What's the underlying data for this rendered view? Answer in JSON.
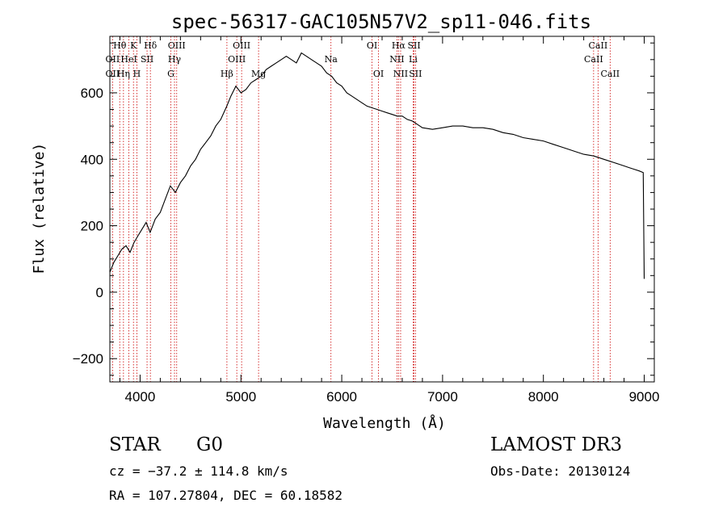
{
  "chart_data": {
    "type": "line",
    "title": "spec-56317-GAC105N57V2_sp11-046.fits",
    "xlabel": "Wavelength (Å)",
    "ylabel": "Flux (relative)",
    "xlim": [
      3700,
      9100
    ],
    "ylim": [
      -270,
      770
    ],
    "xticks": [
      4000,
      5000,
      6000,
      7000,
      8000,
      9000
    ],
    "yticks": [
      -200,
      0,
      200,
      400,
      600
    ],
    "series": [
      {
        "name": "flux",
        "x": [
          3700,
          3740,
          3780,
          3820,
          3860,
          3900,
          3940,
          3980,
          4020,
          4060,
          4100,
          4150,
          4200,
          4250,
          4300,
          4350,
          4400,
          4450,
          4500,
          4550,
          4600,
          4650,
          4700,
          4750,
          4800,
          4860,
          4900,
          4950,
          5000,
          5050,
          5100,
          5150,
          5200,
          5250,
          5300,
          5350,
          5400,
          5450,
          5500,
          5550,
          5600,
          5650,
          5700,
          5750,
          5800,
          5850,
          5900,
          5950,
          6000,
          6050,
          6100,
          6150,
          6200,
          6250,
          6300,
          6350,
          6400,
          6450,
          6500,
          6550,
          6600,
          6650,
          6700,
          6750,
          6800,
          6900,
          7000,
          7100,
          7200,
          7300,
          7400,
          7500,
          7600,
          7700,
          7800,
          7900,
          8000,
          8100,
          8200,
          8300,
          8400,
          8500,
          8600,
          8650,
          8700,
          8750,
          8800,
          8850,
          8900,
          8950,
          8990,
          9000
        ],
        "y": [
          60,
          90,
          110,
          130,
          140,
          120,
          150,
          170,
          190,
          210,
          180,
          220,
          240,
          280,
          320,
          300,
          330,
          350,
          380,
          400,
          430,
          450,
          470,
          500,
          520,
          560,
          590,
          620,
          600,
          610,
          630,
          640,
          650,
          670,
          680,
          690,
          700,
          710,
          700,
          690,
          720,
          710,
          700,
          690,
          680,
          660,
          650,
          630,
          620,
          600,
          590,
          580,
          570,
          560,
          555,
          550,
          545,
          540,
          535,
          530,
          530,
          520,
          515,
          505,
          495,
          490,
          495,
          500,
          500,
          495,
          495,
          490,
          480,
          475,
          465,
          460,
          455,
          445,
          435,
          425,
          415,
          410,
          400,
          395,
          390,
          385,
          380,
          375,
          370,
          365,
          360,
          40
        ]
      }
    ],
    "line_labels": [
      {
        "text": "Hθ",
        "x": 3798,
        "row": 1
      },
      {
        "text": "OII",
        "x": 3727,
        "row": 2
      },
      {
        "text": "OII",
        "x": 3727,
        "row": 3
      },
      {
        "text": "K",
        "x": 3934,
        "row": 1
      },
      {
        "text": "HeI",
        "x": 3889,
        "row": 2
      },
      {
        "text": "Hη",
        "x": 3835,
        "row": 3
      },
      {
        "text": "Hδ",
        "x": 4102,
        "row": 1
      },
      {
        "text": "SII",
        "x": 4069,
        "row": 2
      },
      {
        "text": "H",
        "x": 3968,
        "row": 3
      },
      {
        "text": "OIII",
        "x": 4363,
        "row": 1
      },
      {
        "text": "Hγ",
        "x": 4341,
        "row": 2
      },
      {
        "text": "G",
        "x": 4305,
        "row": 3
      },
      {
        "text": "OIII",
        "x": 5007,
        "row": 1
      },
      {
        "text": "OIII",
        "x": 4959,
        "row": 2
      },
      {
        "text": "Hβ",
        "x": 4861,
        "row": 3
      },
      {
        "text": "Mg",
        "x": 5175,
        "row": 3
      },
      {
        "text": "Na",
        "x": 5893,
        "row": 2
      },
      {
        "text": "OI",
        "x": 6300,
        "row": 1
      },
      {
        "text": "OI",
        "x": 6364,
        "row": 3
      },
      {
        "text": "Hα",
        "x": 6563,
        "row": 1
      },
      {
        "text": "SII",
        "x": 6717,
        "row": 1
      },
      {
        "text": "NII",
        "x": 6548,
        "row": 2
      },
      {
        "text": "Li",
        "x": 6708,
        "row": 2
      },
      {
        "text": "NII",
        "x": 6584,
        "row": 3
      },
      {
        "text": "SII",
        "x": 6731,
        "row": 3
      },
      {
        "text": "CaII",
        "x": 8542,
        "row": 1
      },
      {
        "text": "CaII",
        "x": 8498,
        "row": 2
      },
      {
        "text": "CaII",
        "x": 8662,
        "row": 3
      }
    ],
    "line_marks": [
      3727,
      3798,
      3835,
      3889,
      3934,
      3968,
      4069,
      4102,
      4305,
      4341,
      4363,
      4861,
      4959,
      5007,
      5175,
      5893,
      6300,
      6364,
      6548,
      6563,
      6584,
      6708,
      6717,
      6731,
      8498,
      8542,
      8662
    ],
    "colors": {
      "line": "#000000",
      "marker": "#cc0000",
      "axis": "#000000"
    }
  },
  "info": {
    "class": "STAR",
    "subclass": "G0",
    "survey": "LAMOST DR3",
    "cz": "cz = −37.2 ± 114.8 km/s",
    "obsdate": "Obs-Date: 20130124",
    "radec": "RA = 107.27804, DEC =  60.18582"
  }
}
